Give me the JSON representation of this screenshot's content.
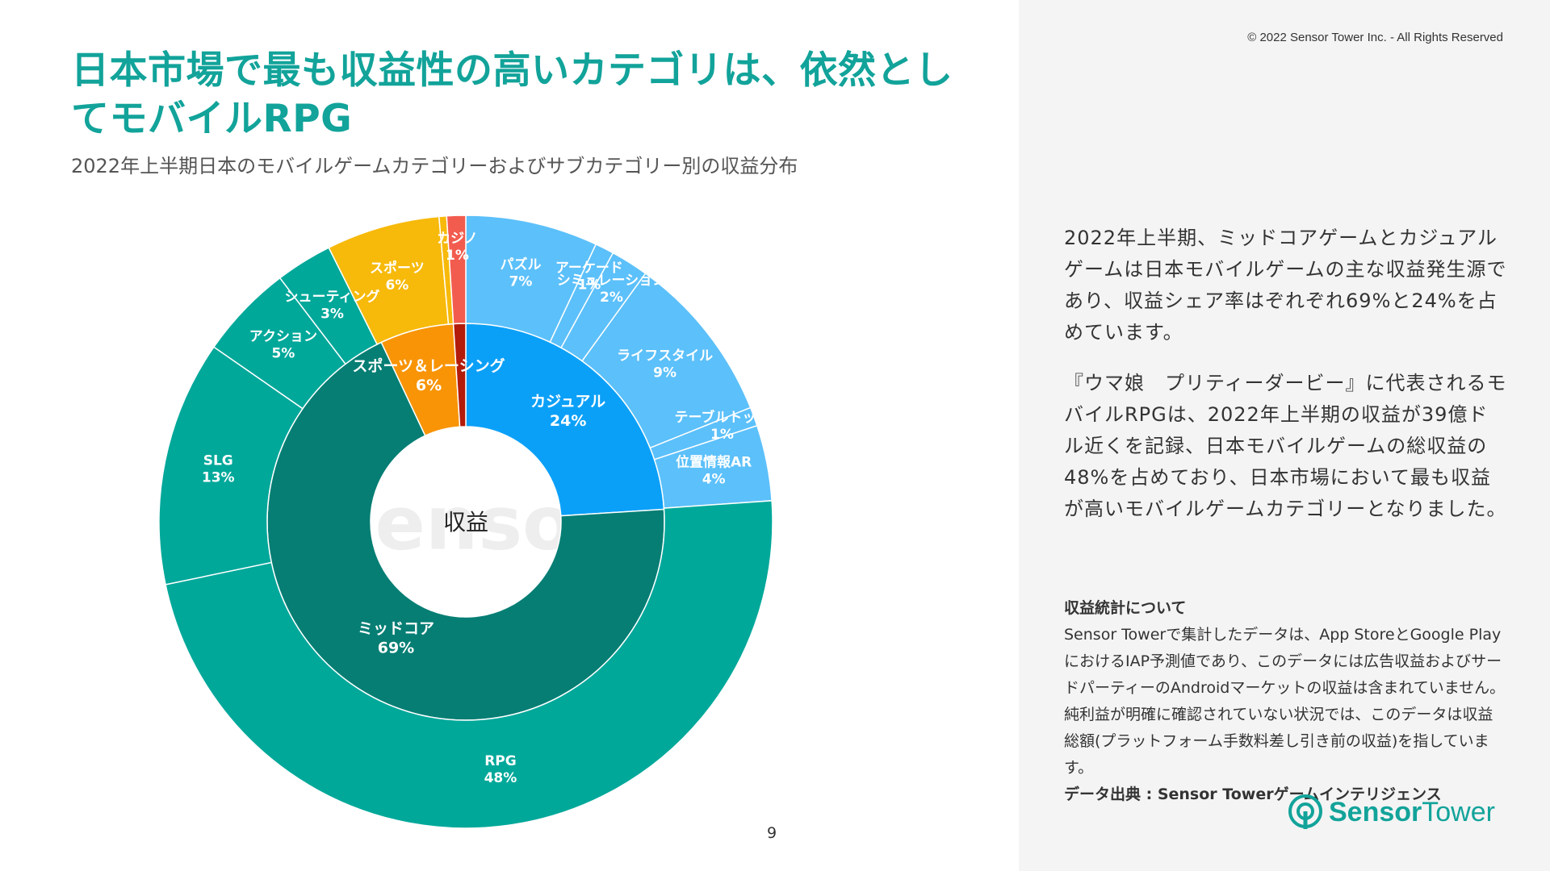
{
  "copyright": "© 2022 Sensor Tower Inc. - All Rights Reserved",
  "title": "日本市場で最も収益性の高いカテゴリは、依然としてモバイルRPG",
  "subtitle": "2022年上半期日本のモバイルゲームカテゴリーおよびサブカテゴリー別の収益分布",
  "page_number": "9",
  "colors": {
    "accent": "#12a39a",
    "panel_bg": "#f4f4f4"
  },
  "chart_data": {
    "type": "sunburst",
    "center_label": "収益",
    "watermark": "Sensor",
    "inner": [
      {
        "name": "カジュアル",
        "label": "24%",
        "value": 24,
        "color": "#0ba0f8"
      },
      {
        "name": "ミッドコア",
        "label": "69%",
        "value": 69,
        "color": "#067e74"
      },
      {
        "name": "スポーツ＆レーシング",
        "label": "6%",
        "value": 6,
        "color": "#f89406"
      },
      {
        "name": "カジノ",
        "label": "1%",
        "value": 1,
        "color": "#b31b0b"
      }
    ],
    "outer": [
      {
        "name": "パズル",
        "label": "7%",
        "value": 7,
        "parent": "カジュアル",
        "color": "#5cc0fa"
      },
      {
        "name": "アーケード",
        "label": "1%",
        "value": 1,
        "parent": "カジュアル",
        "color": "#5cc0fa"
      },
      {
        "name": "シミュレーション",
        "label": "2%",
        "value": 2,
        "parent": "カジュアル",
        "color": "#5cc0fa"
      },
      {
        "name": "ライフスタイル",
        "label": "9%",
        "value": 9,
        "parent": "カジュアル",
        "color": "#5cc0fa"
      },
      {
        "name": "テーブルトップ",
        "label": "1%",
        "value": 1,
        "parent": "カジュアル",
        "color": "#5cc0fa"
      },
      {
        "name": "位置情報AR",
        "label": "4%",
        "value": 4,
        "parent": "カジュアル",
        "color": "#5cc0fa"
      },
      {
        "name": "RPG",
        "label": "48%",
        "value": 48,
        "parent": "ミッドコア",
        "color": "#00a89a"
      },
      {
        "name": "SLG",
        "label": "13%",
        "value": 13,
        "parent": "ミッドコア",
        "color": "#00a89a"
      },
      {
        "name": "アクション",
        "label": "5%",
        "value": 5,
        "parent": "ミッドコア",
        "color": "#00a89a"
      },
      {
        "name": "シューティング",
        "label": "3%",
        "value": 3,
        "parent": "ミッドコア",
        "color": "#00a89a"
      },
      {
        "name": "スポーツ",
        "label": "6%",
        "value": 6,
        "parent": "スポーツ＆レーシング",
        "color": "#f7b90a"
      },
      {
        "name": "",
        "label": "",
        "value": 0.4,
        "parent": "スポーツ＆レーシング",
        "color": "#f7b90a"
      },
      {
        "name": "カジノ",
        "label": "1%",
        "value": 1,
        "parent": "カジノ",
        "color": "#f25c4f"
      }
    ]
  },
  "paragraphs": [
    "2022年上半期、ミッドコアゲームとカジュアルゲームは日本モバイルゲームの主な収益発生源であり、収益シェア率はぞれぞれ69%と24%を占めています。",
    "『ウマ娘　プリティーダービー』に代表されるモバイルRPGは、2022年上半期の収益が39億ドル近くを記録、日本モバイルゲームの総収益の48%を占めており、日本市場において最も収益が高いモバイルゲームカテゴリーとなりました。"
  ],
  "about": {
    "title": "収益統計について",
    "body": "Sensor Towerで集計したデータは、App StoreとGoogle PlayにおけるIAP予測値であり、このデータには広告収益およびサードパーティーのAndroidマーケットの収益は含まれていません。純利益が明確に確認されていない状況では、このデータは収益総額(プラットフォーム手数料差し引き前の収益)を指しています。",
    "source": "データ出典 : Sensor Towerゲームインテリジェンス"
  },
  "logo": {
    "bold": "Sensor",
    "regular": "Tower",
    "icon": "sensor-tower-logo-icon"
  }
}
